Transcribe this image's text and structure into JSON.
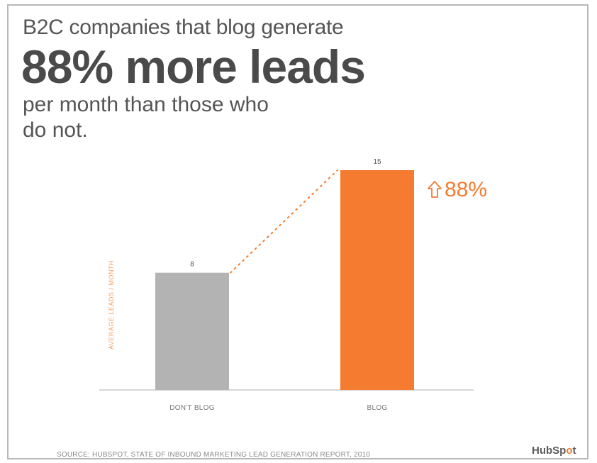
{
  "headline": {
    "line1": "B2C companies that blog generate",
    "line2": "88% more leads",
    "line3": "per month than those who do not."
  },
  "colors": {
    "accent": "#f47b30",
    "bar_no_blog": "#b3b3b3",
    "bar_blog": "#f47b30",
    "text_dark": "#4a4a4a"
  },
  "chart_data": {
    "type": "bar",
    "categories": [
      "DON'T BLOG",
      "BLOG"
    ],
    "values": [
      8,
      15
    ],
    "data_labels": [
      "8",
      "15"
    ],
    "ylabel": "AVERAGE LEADS / MONTH",
    "ylim": [
      0,
      15
    ],
    "grid": false,
    "annotation": {
      "text": "88%",
      "icon": "arrow-up-icon"
    },
    "connector": "dotted-line"
  },
  "footer": {
    "source": "SOURCE: HUBSPOT, STATE OF INBOUND MARKETING LEAD GENERATION REPORT, 2010",
    "brand_prefix": "HubSp",
    "brand_dot": "o",
    "brand_suffix": "t"
  }
}
